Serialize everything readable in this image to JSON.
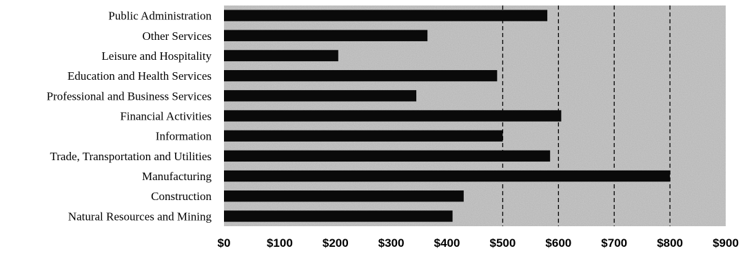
{
  "chart_data": {
    "type": "bar",
    "orientation": "horizontal",
    "title": "",
    "xlabel": "",
    "ylabel": "",
    "categories": [
      "Public Administration",
      "Other Services",
      "Leisure and Hospitality",
      "Education and Health Services",
      "Professional and Business Services",
      "Financial Activities",
      "Information",
      "Trade, Transportation and Utilities",
      "Manufacturing",
      "Construction",
      "Natural Resources and Mining"
    ],
    "values": [
      580,
      365,
      205,
      490,
      345,
      605,
      500,
      585,
      800,
      430,
      410
    ],
    "xlim": [
      0,
      900
    ],
    "xticks": [
      0,
      100,
      200,
      300,
      400,
      500,
      600,
      700,
      800,
      900
    ],
    "xtick_labels": [
      "$0",
      "$100",
      "$200",
      "$300",
      "$400",
      "$500",
      "$600",
      "$700",
      "$800",
      "$900"
    ],
    "grid": "vertical dashed lines at $500, $600, $700, $800",
    "legend": "none",
    "colors": {
      "bar": "#0a0a0a",
      "plot_background": "#b9b9b9",
      "gridline": "#000000"
    }
  }
}
